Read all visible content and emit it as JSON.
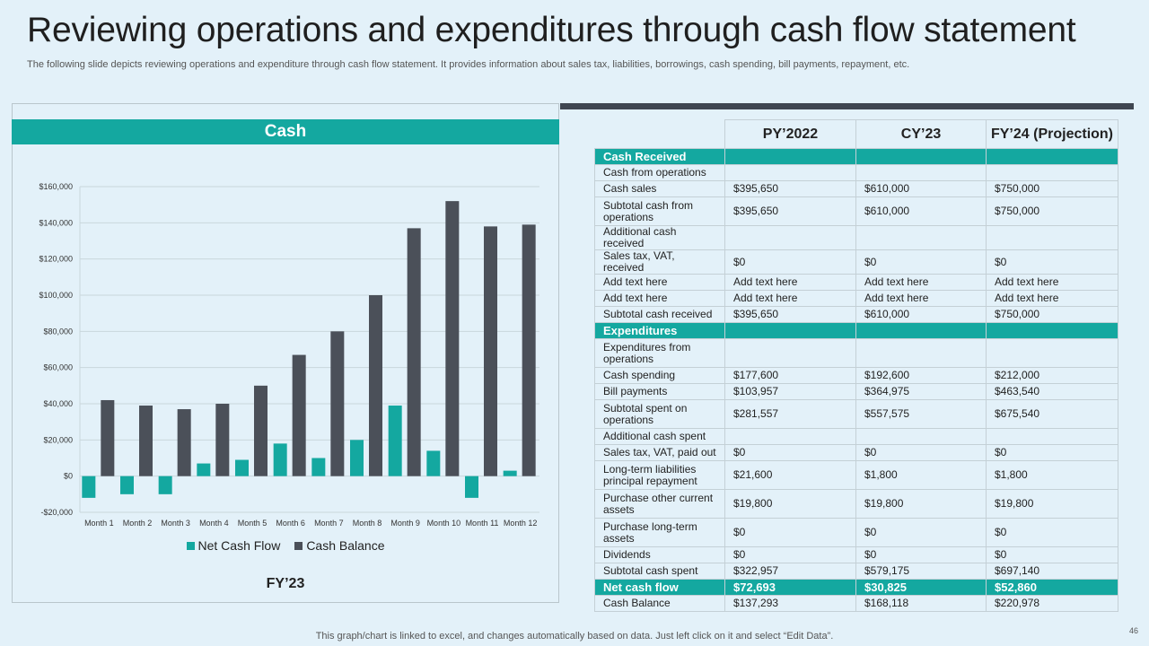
{
  "slide": {
    "title": "Reviewing operations and expenditures through cash flow statement",
    "subtitle": "The following slide depicts reviewing operations and expenditure through cash flow statement. It provides information about sales tax, liabilities, borrowings, cash spending, bill payments, repayment, etc.",
    "footer_note": "This graph/chart is linked to excel,  and changes automatically based on data. Just left click on it and select “Edit Data”.",
    "page_number": "46"
  },
  "chart_header": "Cash",
  "chart_caption": "FY’23",
  "colors": {
    "teal": "#14a8a0",
    "dark": "#4b5059",
    "background": "#e3f1f9"
  },
  "chart_data": {
    "type": "bar",
    "categories": [
      "Month 1",
      "Month 2",
      "Month 3",
      "Month 4",
      "Month 5",
      "Month 6",
      "Month 7",
      "Month 8",
      "Month 9",
      "Month 10",
      "Month 11",
      "Month 12"
    ],
    "series": [
      {
        "name": "Net Cash Flow",
        "color": "#14a8a0",
        "values": [
          -12000,
          -10000,
          -10000,
          7000,
          9000,
          18000,
          10000,
          20000,
          39000,
          14000,
          -12000,
          3000
        ]
      },
      {
        "name": "Cash Balance",
        "color": "#4b5059",
        "values": [
          42000,
          39000,
          37000,
          40000,
          50000,
          67000,
          80000,
          100000,
          137000,
          152000,
          138000,
          139000
        ]
      }
    ],
    "ylim": [
      -20000,
      160000
    ],
    "yticks": [
      -20000,
      0,
      20000,
      40000,
      60000,
      80000,
      100000,
      120000,
      140000,
      160000
    ],
    "ytick_labels": [
      "-$20,000",
      "$0",
      "$20,000",
      "$40,000",
      "$60,000",
      "$80,000",
      "$100,000",
      "$120,000",
      "$140,000",
      "$160,000"
    ],
    "grid": true,
    "legend_position": "bottom"
  },
  "table": {
    "columns": [
      "",
      "PY’2022",
      "CY’23",
      "FY’24 (Projection)"
    ],
    "rows": [
      {
        "kind": "section",
        "cells": [
          "Cash Received",
          "",
          "",
          ""
        ]
      },
      {
        "kind": "row",
        "cells": [
          "Cash from operations",
          "",
          "",
          ""
        ]
      },
      {
        "kind": "row",
        "cells": [
          "Cash sales",
          "$395,650",
          "$610,000",
          "$750,000"
        ]
      },
      {
        "kind": "row",
        "cells": [
          "Subtotal cash from operations",
          "$395,650",
          "$610,000",
          "$750,000"
        ]
      },
      {
        "kind": "row",
        "cells": [
          "Additional cash received",
          "",
          "",
          ""
        ]
      },
      {
        "kind": "row",
        "cells": [
          "Sales tax, VAT,  received",
          "$0",
          "$0",
          "$0"
        ]
      },
      {
        "kind": "row",
        "cells": [
          "Add text here",
          "Add text here",
          "Add text here",
          "Add text here"
        ]
      },
      {
        "kind": "row",
        "cells": [
          "Add text here",
          "Add text here",
          "Add text here",
          "Add text here"
        ]
      },
      {
        "kind": "row",
        "cells": [
          "Subtotal cash received",
          "$395,650",
          "$610,000",
          "$750,000"
        ]
      },
      {
        "kind": "section",
        "cells": [
          "Expenditures",
          "",
          "",
          ""
        ]
      },
      {
        "kind": "row",
        "cells": [
          "Expenditures from operations",
          "",
          "",
          ""
        ]
      },
      {
        "kind": "row",
        "cells": [
          "Cash spending",
          "$177,600",
          "$192,600",
          "$212,000"
        ]
      },
      {
        "kind": "row",
        "cells": [
          "Bill payments",
          "$103,957",
          "$364,975",
          "$463,540"
        ]
      },
      {
        "kind": "row",
        "cells": [
          "Subtotal spent on operations",
          "$281,557",
          "$557,575",
          "$675,540"
        ]
      },
      {
        "kind": "row",
        "cells": [
          "Additional cash spent",
          "",
          "",
          ""
        ]
      },
      {
        "kind": "row",
        "cells": [
          "Sales tax, VAT,  paid out",
          "$0",
          "$0",
          "$0"
        ]
      },
      {
        "kind": "row",
        "cells": [
          "Long-term liabilities principal repayment",
          "$21,600",
          "$1,800",
          "$1,800"
        ]
      },
      {
        "kind": "row",
        "cells": [
          "Purchase other current assets",
          "$19,800",
          "$19,800",
          "$19,800"
        ]
      },
      {
        "kind": "row",
        "cells": [
          "Purchase long-term assets",
          "$0",
          "$0",
          "$0"
        ]
      },
      {
        "kind": "row",
        "cells": [
          "Dividends",
          "$0",
          "$0",
          "$0"
        ]
      },
      {
        "kind": "row",
        "cells": [
          "Subtotal cash spent",
          "$322,957",
          "$579,175",
          "$697,140"
        ]
      },
      {
        "kind": "net",
        "cells": [
          "Net cash flow",
          "$72,693",
          "$30,825",
          "$52,860"
        ]
      },
      {
        "kind": "row",
        "cells": [
          "Cash Balance",
          "$137,293",
          "$168,118",
          "$220,978"
        ]
      }
    ]
  }
}
